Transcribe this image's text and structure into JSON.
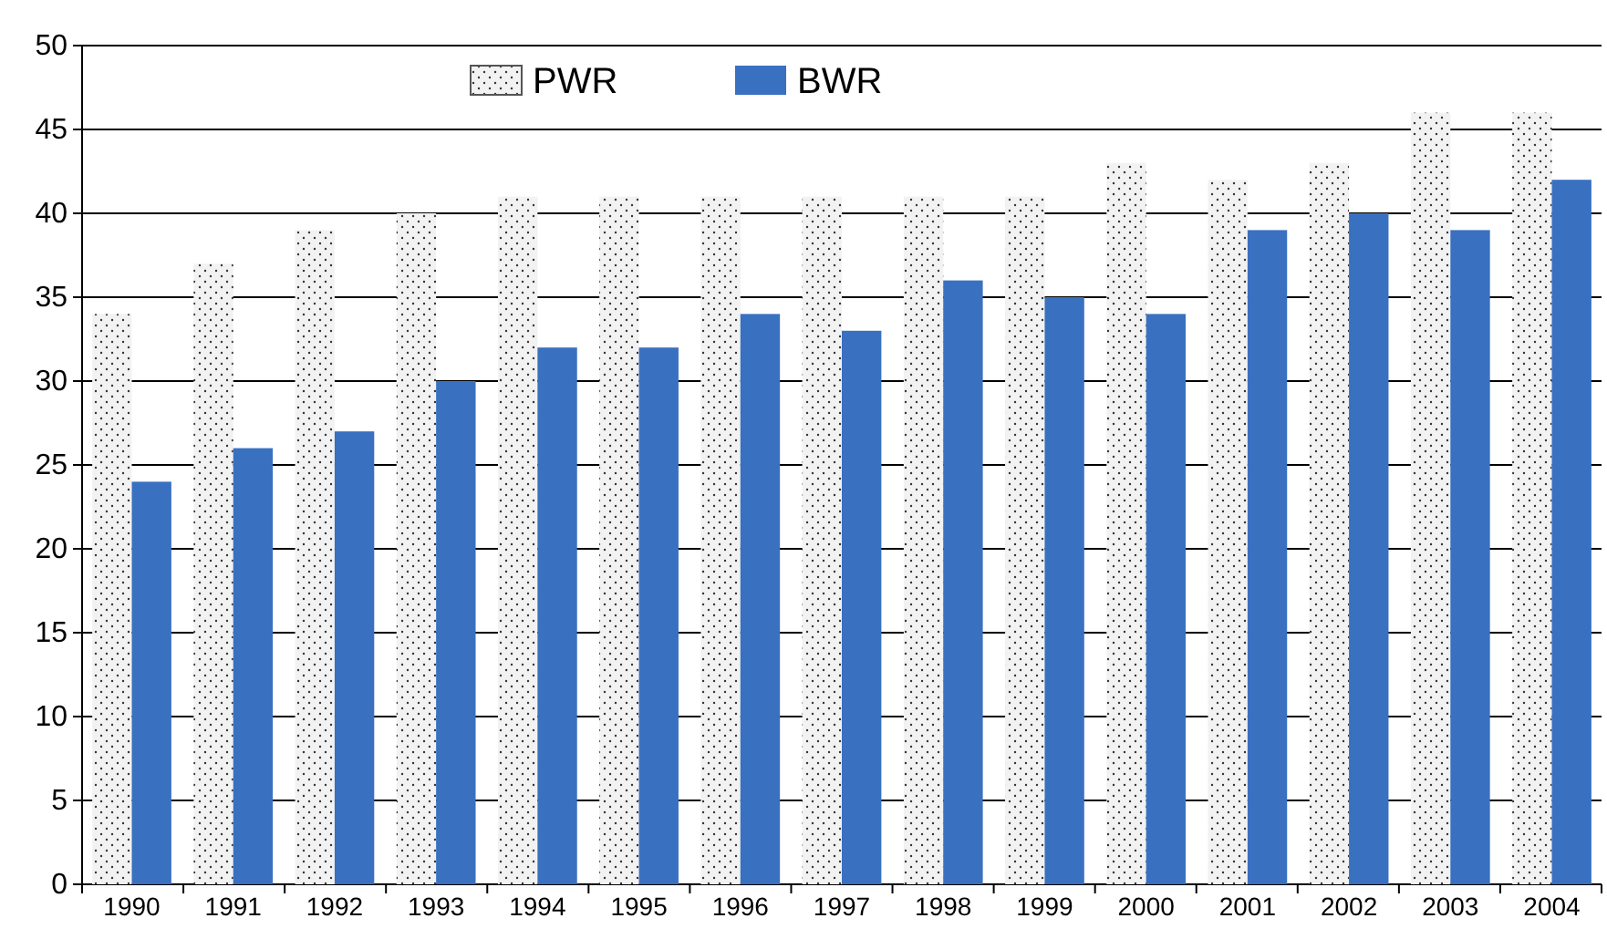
{
  "chart_data": {
    "type": "bar",
    "categories": [
      "1990",
      "1991",
      "1992",
      "1993",
      "1994",
      "1995",
      "1996",
      "1997",
      "1998",
      "1999",
      "2000",
      "2001",
      "2002",
      "2003",
      "2004"
    ],
    "series": [
      {
        "name": "PWR",
        "color": "#f2f2f2",
        "values": [
          34,
          37,
          39,
          40,
          41,
          41,
          41,
          41,
          41,
          41,
          43,
          42,
          43,
          46,
          46
        ]
      },
      {
        "name": "BWR",
        "color": "#3a70c0",
        "values": [
          24,
          26,
          27,
          30,
          32,
          32,
          34,
          33,
          36,
          35,
          34,
          39,
          40,
          39,
          42
        ]
      }
    ],
    "ylim": [
      0,
      50
    ],
    "yticks": [
      0,
      5,
      10,
      15,
      20,
      25,
      30,
      35,
      40,
      45,
      50
    ],
    "grid": "y",
    "legend": "top"
  }
}
